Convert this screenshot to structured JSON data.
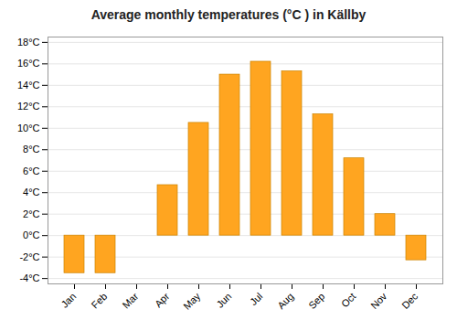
{
  "chart_data": {
    "type": "bar",
    "title": "Average monthly temperatures (°C ) in Källby",
    "categories": [
      "Jan",
      "Feb",
      "Mar",
      "Apr",
      "May",
      "Jun",
      "Jul",
      "Aug",
      "Sep",
      "Oct",
      "Nov",
      "Dec"
    ],
    "values": [
      -3.5,
      -3.5,
      0.0,
      4.7,
      10.5,
      15.0,
      16.2,
      15.3,
      11.3,
      7.2,
      2.0,
      -2.3
    ],
    "color": "#FFA520",
    "ylim": [
      -4.5,
      18.5
    ],
    "yticks": [
      {
        "value": -4,
        "label": "-4°C"
      },
      {
        "value": -2,
        "label": "-2°C"
      },
      {
        "value": 0,
        "label": "0°C"
      },
      {
        "value": 2,
        "label": "2°C"
      },
      {
        "value": 4,
        "label": "4°C"
      },
      {
        "value": 6,
        "label": "6°C"
      },
      {
        "value": 8,
        "label": "8°C"
      },
      {
        "value": 10,
        "label": "10°C"
      },
      {
        "value": 12,
        "label": "12°C"
      },
      {
        "value": 14,
        "label": "14°C"
      },
      {
        "value": 16,
        "label": "16°C"
      },
      {
        "value": 18,
        "label": "18°C"
      }
    ],
    "grid": true
  }
}
